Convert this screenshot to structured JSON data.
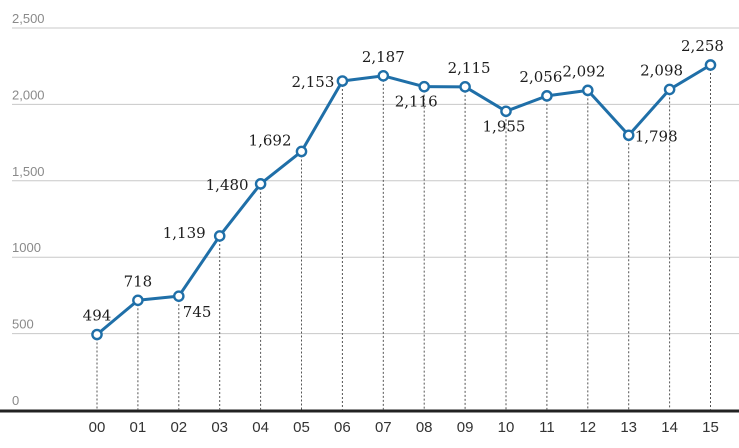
{
  "chart_data": {
    "type": "line",
    "title": "",
    "xlabel": "",
    "ylabel": "",
    "categories": [
      "00",
      "01",
      "02",
      "03",
      "04",
      "05",
      "06",
      "07",
      "08",
      "09",
      "10",
      "11",
      "12",
      "13",
      "14",
      "15"
    ],
    "series": [
      {
        "values": [
          494,
          718,
          745,
          1139,
          1480,
          1692,
          2153,
          2187,
          2116,
          2115,
          1955,
          2056,
          2092,
          1798,
          2098,
          2258
        ],
        "labels": [
          "494",
          "718",
          "745",
          "1,139",
          "1,480",
          "1,692",
          "2,153",
          "2,187",
          "2,116",
          "2,115",
          "1,955",
          "2,056",
          "2,092",
          "1,798",
          "2,098",
          "2,258"
        ]
      }
    ],
    "yticks": [
      0,
      500,
      1000,
      1500,
      2000,
      2500
    ],
    "ytick_labels": [
      "0",
      "500",
      "1000",
      "1,500",
      "2,000",
      "2,500"
    ],
    "ylim": [
      0,
      2500
    ],
    "grid": true,
    "colors": {
      "line": "#1f6fa8",
      "marker_fill": "#ffffff",
      "grid": "#c8c8c8",
      "baseline": "#222222",
      "dropline": "#555555"
    }
  }
}
